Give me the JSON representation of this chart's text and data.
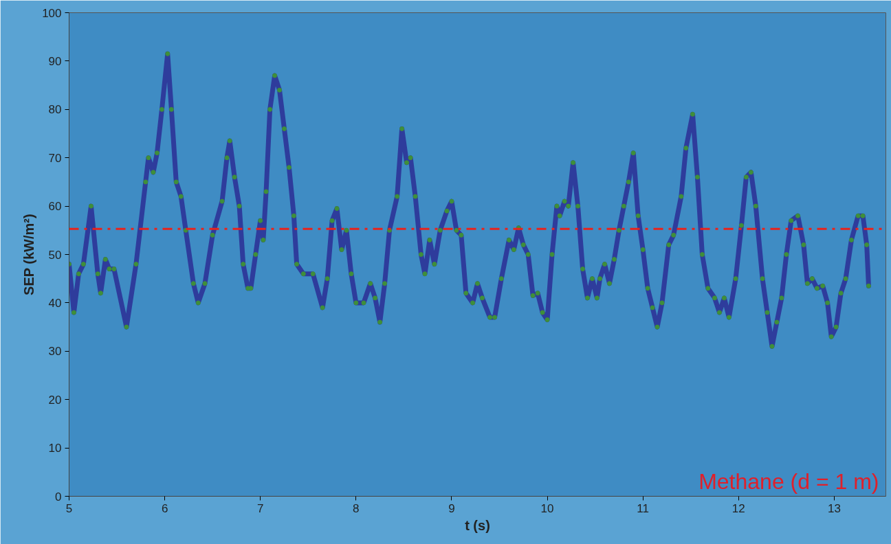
{
  "chart_data": {
    "type": "line",
    "xlabel": "t (s)",
    "ylabel": "SEP (kW/m²)",
    "annotations": [
      "Methane (d = 1 m)"
    ],
    "xlim": [
      5,
      13.54
    ],
    "ylim": [
      0,
      100
    ],
    "xticks": [
      5,
      6,
      7,
      8,
      9,
      10,
      11,
      12,
      13
    ],
    "yticks": [
      0,
      10,
      20,
      30,
      40,
      50,
      60,
      70,
      80,
      90,
      100
    ],
    "grid": false,
    "marker": "circle",
    "ref_lines": [
      {
        "axis": "y",
        "value": 55.3,
        "label": null,
        "color": "#e8231c",
        "line_style": "dashdot"
      }
    ],
    "series": [
      {
        "color": "#3f8f3a",
        "x": [
          5.0,
          5.05,
          5.1,
          5.15,
          5.23,
          5.3,
          5.33,
          5.38,
          5.42,
          5.47,
          5.6,
          5.7,
          5.8,
          5.83,
          5.88,
          5.92,
          5.97,
          6.03,
          6.07,
          6.12,
          6.17,
          6.22,
          6.3,
          6.35,
          6.42,
          6.5,
          6.6,
          6.65,
          6.68,
          6.73,
          6.78,
          6.82,
          6.87,
          6.9,
          6.95,
          7.0,
          7.03,
          7.06,
          7.1,
          7.15,
          7.2,
          7.25,
          7.3,
          7.35,
          7.38,
          7.45,
          7.55,
          7.65,
          7.7,
          7.75,
          7.8,
          7.85,
          7.9,
          7.95,
          8.0,
          8.08,
          8.15,
          8.2,
          8.25,
          8.3,
          8.35,
          8.43,
          8.48,
          8.53,
          8.57,
          8.62,
          8.68,
          8.72,
          8.77,
          8.82,
          8.88,
          8.95,
          9.0,
          9.05,
          9.1,
          9.15,
          9.22,
          9.27,
          9.32,
          9.4,
          9.45,
          9.52,
          9.6,
          9.65,
          9.7,
          9.75,
          9.8,
          9.85,
          9.9,
          9.95,
          10.0,
          10.05,
          10.1,
          10.13,
          10.18,
          10.22,
          10.27,
          10.32,
          10.37,
          10.42,
          10.47,
          10.52,
          10.55,
          10.6,
          10.65,
          10.7,
          10.75,
          10.8,
          10.85,
          10.9,
          10.95,
          11.0,
          11.05,
          11.1,
          11.15,
          11.2,
          11.27,
          11.32,
          11.4,
          11.45,
          11.52,
          11.57,
          11.62,
          11.68,
          11.75,
          11.8,
          11.85,
          11.9,
          11.97,
          12.03,
          12.08,
          12.13,
          12.18,
          12.25,
          12.3,
          12.35,
          12.4,
          12.45,
          12.5,
          12.55,
          12.62,
          12.68,
          12.72,
          12.77,
          12.82,
          12.88,
          12.93,
          12.97,
          13.02,
          13.07,
          13.12,
          13.18,
          13.25,
          13.3,
          13.34,
          13.36
        ],
        "values": [
          48,
          38,
          46,
          48,
          60,
          46,
          42,
          49,
          47,
          47,
          35,
          48,
          65,
          70,
          67,
          71,
          80,
          91.5,
          80,
          65,
          62,
          55,
          44,
          40,
          44,
          54,
          61,
          70,
          73.5,
          66,
          60,
          48,
          43,
          43,
          50,
          57,
          53,
          63,
          80,
          87,
          84,
          76,
          68,
          58,
          48,
          46,
          46,
          39,
          45,
          57,
          59.5,
          51,
          55,
          46,
          40,
          40,
          44,
          41,
          36,
          44,
          55,
          62,
          76,
          69,
          70,
          62,
          50,
          46,
          53,
          48,
          55,
          59,
          61,
          55,
          54,
          42,
          40,
          44,
          41,
          37,
          37,
          45,
          53,
          51,
          55.5,
          52,
          50,
          41.5,
          42,
          38,
          36.5,
          50,
          60,
          58,
          61,
          60,
          69,
          60,
          47,
          41,
          45,
          41,
          45,
          48,
          44,
          49,
          55,
          60,
          65,
          71,
          58,
          51,
          43,
          39,
          35,
          40,
          52,
          54,
          62,
          72,
          79,
          66,
          50,
          43,
          41,
          38,
          41,
          37,
          45,
          56,
          66,
          67,
          60,
          45,
          38,
          31,
          36,
          41,
          50,
          57,
          58,
          52,
          44,
          45,
          43,
          43.5,
          40,
          33,
          35,
          42,
          45,
          53,
          58,
          58,
          52,
          43.5
        ]
      }
    ]
  }
}
